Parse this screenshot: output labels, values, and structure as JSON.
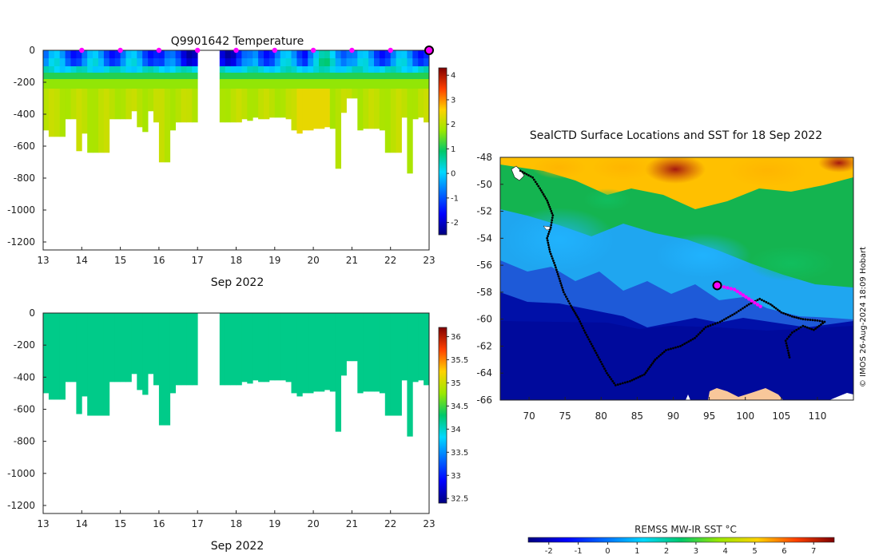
{
  "chart_data": [
    {
      "id": "temperature",
      "type": "heatmap",
      "title": "Q9901642  Temperature",
      "xlabel": "Sep 2022",
      "ylabel": "",
      "xlim": [
        13,
        23
      ],
      "ylim": [
        -1250,
        0
      ],
      "x_ticks": [
        "13",
        "14",
        "15",
        "16",
        "17",
        "18",
        "19",
        "20",
        "21",
        "22",
        "23"
      ],
      "y_ticks": [
        "0",
        "-200",
        "-400",
        "-600",
        "-800",
        "-1000",
        "-1200"
      ],
      "colorbar": {
        "min": -2.5,
        "max": 4.3,
        "ticks": [
          "4",
          "3",
          "2",
          "1",
          "0",
          "-1",
          "-2"
        ]
      },
      "gap": [
        17.05,
        17.6
      ],
      "markers": {
        "color": "#ff00ff",
        "x": [
          14,
          15,
          16,
          17,
          18,
          19,
          20,
          21,
          22
        ],
        "current_x": 23
      },
      "profile_depths": [
        500,
        540,
        540,
        540,
        430,
        430,
        630,
        520,
        640,
        640,
        640,
        640,
        430,
        430,
        430,
        430,
        380,
        480,
        510,
        380,
        450,
        700,
        700,
        500,
        450,
        450,
        450,
        450,
        450,
        450,
        450,
        450,
        450,
        450,
        450,
        450,
        430,
        440,
        420,
        430,
        430,
        420,
        420,
        420,
        430,
        500,
        520,
        500,
        500,
        490,
        490,
        480,
        490,
        740,
        390,
        300,
        300,
        500,
        490,
        490,
        490,
        500,
        640,
        640,
        640,
        420,
        770,
        430,
        420,
        450
      ]
    },
    {
      "id": "salinity",
      "type": "heatmap",
      "title": "",
      "xlabel": "Sep 2022",
      "ylabel": "",
      "xlim": [
        13,
        23
      ],
      "ylim": [
        -1250,
        0
      ],
      "x_ticks": [
        "13",
        "14",
        "15",
        "16",
        "17",
        "18",
        "19",
        "20",
        "21",
        "22",
        "23"
      ],
      "y_ticks": [
        "0",
        "-200",
        "-400",
        "-600",
        "-800",
        "-1000",
        "-1200"
      ],
      "colorbar": {
        "min": 32.4,
        "max": 36.2,
        "ticks": [
          "36",
          "35.5",
          "35",
          "34.5",
          "34",
          "33.5",
          "33",
          "32.5"
        ]
      },
      "fill_value": 34.2
    },
    {
      "id": "map",
      "type": "heatmap",
      "title": "SealCTD Surface Locations and SST for 18 Sep 2022",
      "xlabel": "",
      "ylabel": "",
      "xlim": [
        66,
        115
      ],
      "ylim": [
        -66,
        -48
      ],
      "x_ticks": [
        "70",
        "75",
        "80",
        "85",
        "90",
        "95",
        "100",
        "105",
        "110"
      ],
      "y_ticks": [
        "-48",
        "-50",
        "-52",
        "-54",
        "-56",
        "-58",
        "-60",
        "-62",
        "-64",
        "-66"
      ],
      "current_position": {
        "lon": 96.1,
        "lat": -57.5
      },
      "recent_track": [
        [
          96.1,
          -57.5
        ],
        [
          98.5,
          -57.8
        ],
        [
          100.5,
          -58.5
        ],
        [
          102.5,
          -59.2
        ]
      ],
      "track": [
        [
          68.8,
          -49.0
        ],
        [
          70.5,
          -49.5
        ],
        [
          71.5,
          -50.3
        ],
        [
          72.5,
          -51.2
        ],
        [
          73.3,
          -52.3
        ],
        [
          73.0,
          -53.2
        ],
        [
          72.5,
          -54.0
        ],
        [
          72.9,
          -55.0
        ],
        [
          73.6,
          -56.0
        ],
        [
          74.2,
          -57.0
        ],
        [
          74.8,
          -58.0
        ],
        [
          75.8,
          -59.0
        ],
        [
          76.9,
          -60.0
        ],
        [
          77.8,
          -61.0
        ],
        [
          78.8,
          -62.0
        ],
        [
          79.8,
          -63.0
        ],
        [
          80.8,
          -64.0
        ],
        [
          82.0,
          -64.9
        ],
        [
          84.0,
          -64.6
        ],
        [
          86.0,
          -64.1
        ],
        [
          87.5,
          -63.0
        ],
        [
          89.0,
          -62.3
        ],
        [
          91.0,
          -62.0
        ],
        [
          93.0,
          -61.4
        ],
        [
          94.5,
          -60.6
        ],
        [
          96.5,
          -60.2
        ],
        [
          98.5,
          -59.6
        ],
        [
          100.5,
          -58.9
        ],
        [
          102.0,
          -58.5
        ],
        [
          103.5,
          -58.9
        ],
        [
          105.0,
          -59.5
        ],
        [
          106.5,
          -59.8
        ],
        [
          108.0,
          -60.0
        ],
        [
          110.0,
          -60.1
        ],
        [
          111.0,
          -60.2
        ],
        [
          109.5,
          -60.8
        ],
        [
          108.0,
          -60.5
        ],
        [
          106.5,
          -61.0
        ],
        [
          105.6,
          -61.6
        ],
        [
          106.0,
          -62.5
        ],
        [
          106.2,
          -63.0
        ]
      ],
      "colorbar": {
        "label": "REMSS MW-IR SST °C",
        "min": -2.7,
        "max": 7.7,
        "ticks": [
          "-2",
          "-1",
          "0",
          "1",
          "2",
          "3",
          "4",
          "5",
          "6",
          "7"
        ]
      },
      "credit": "© IMOS 26-Aug-2024 18:09 Hobart"
    }
  ]
}
